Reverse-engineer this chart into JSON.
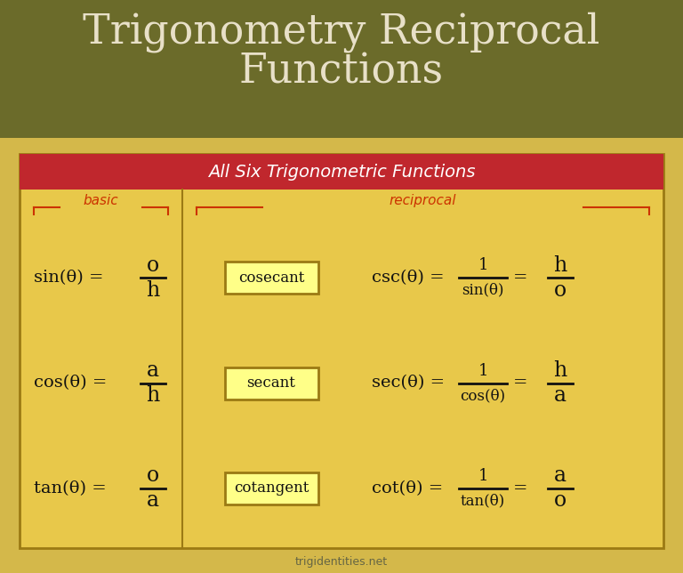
{
  "title_line1": "Trigonometry Reciprocal",
  "title_line2": "Functions",
  "title_bg_color": "#6B6B2A",
  "title_text_color": "#E8E0C8",
  "outer_bg_color": "#D4B84A",
  "table_bg_color": "#E8C84A",
  "table_header_bg": "#C0272D",
  "table_header_text": "All Six Trigonometric Functions",
  "table_header_text_color": "#FFFFFF",
  "table_border_color": "#9B7A14",
  "divider_color": "#9B7A14",
  "basic_label": "basic",
  "reciprocal_label": "reciprocal",
  "label_color": "#CC3300",
  "formula_text_color": "#111111",
  "box_fill_color": "#FFFF88",
  "box_border_color": "#9B7A14",
  "footer_text": "trigidentities.net",
  "footer_color": "#666644",
  "rows": [
    {
      "basic_func": "sin(θ) =",
      "basic_num": "o",
      "basic_den": "h",
      "box_label": "cosecant",
      "recip_func": "csc(θ) =",
      "recip_num": "1",
      "recip_den": "sin(θ)",
      "simple_num": "h",
      "simple_den": "o"
    },
    {
      "basic_func": "cos(θ) =",
      "basic_num": "a",
      "basic_den": "h",
      "box_label": "secant",
      "recip_func": "sec(θ) =",
      "recip_num": "1",
      "recip_den": "cos(θ)",
      "simple_num": "h",
      "simple_den": "a"
    },
    {
      "basic_func": "tan(θ) =",
      "basic_num": "o",
      "basic_den": "a",
      "box_label": "cotangent",
      "recip_func": "cot(θ) =",
      "recip_num": "1",
      "recip_den": "tan(θ)",
      "simple_num": "a",
      "simple_den": "o"
    }
  ]
}
